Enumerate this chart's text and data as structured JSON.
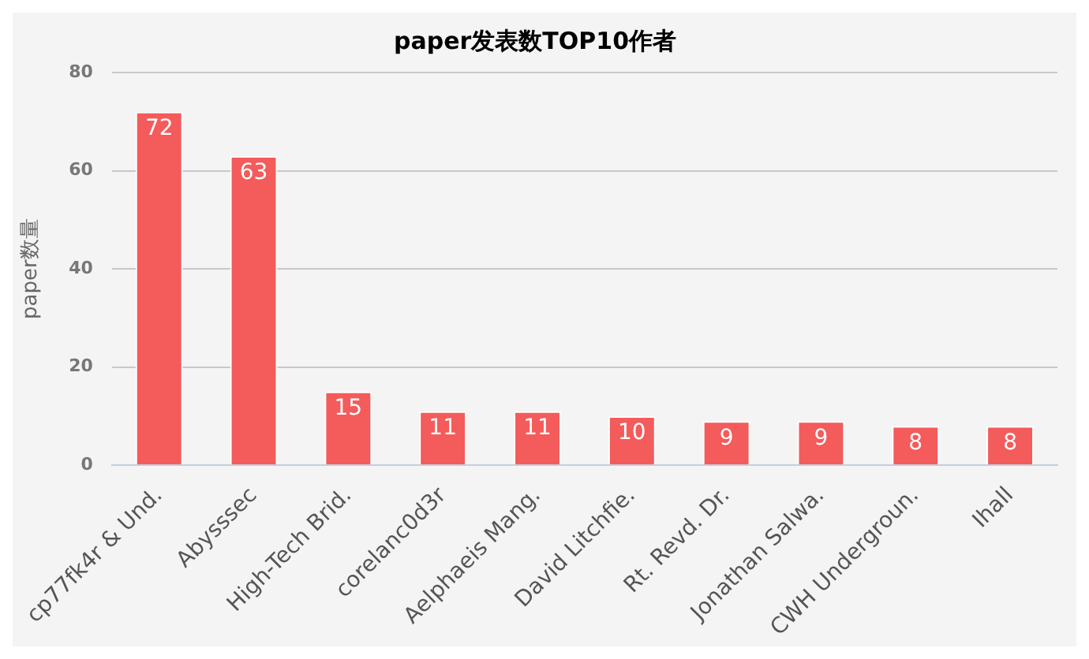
{
  "chart_data": {
    "type": "bar",
    "title": "paper发表数TOP10作者",
    "ylabel": "paper数量",
    "categories": [
      "cp77fk4r & Und.",
      "Abysssec",
      "High-Tech Brid.",
      "corelanc0d3r",
      "Aelphaeis Mang.",
      "David Litchfie.",
      "Rt. Revd. Dr.",
      "Jonathan Salwa.",
      "CWH Undergroun.",
      "Ihall"
    ],
    "values": [
      72,
      63,
      15,
      11,
      11,
      10,
      9,
      9,
      8,
      8
    ],
    "color": "#f45b5b",
    "ylim": [
      0,
      80
    ],
    "yticks": [
      0,
      20,
      40,
      60,
      80
    ],
    "grid": "y",
    "data_labels": true,
    "legend": false
  }
}
